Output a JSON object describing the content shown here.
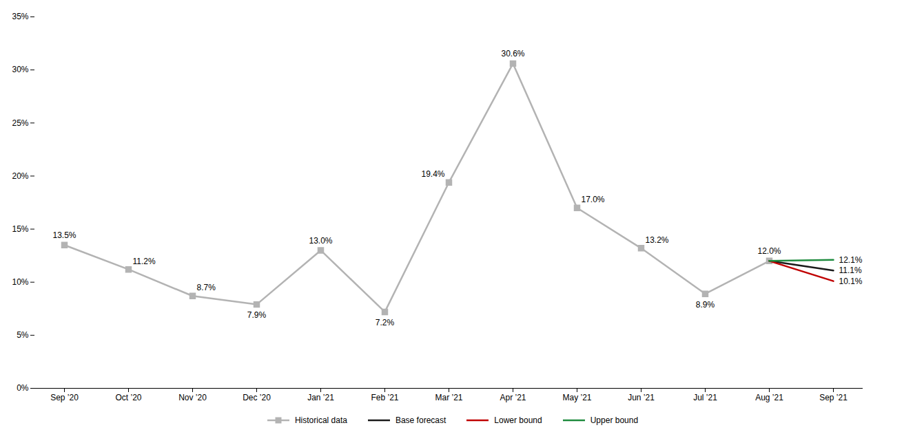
{
  "chart_data": {
    "type": "line",
    "categories": [
      "Sep ’20",
      "Oct ’20",
      "Nov ’20",
      "Dec ’20",
      "Jan ’21",
      "Feb ’21",
      "Mar ’21",
      "Apr ’21",
      "May ’21",
      "Jun ’21",
      "Jul ’21",
      "Aug ’21",
      "Sep ’21"
    ],
    "series": [
      {
        "name": "Historical data",
        "color": "#b3b3b3",
        "marker": "square",
        "values": [
          13.5,
          11.2,
          8.7,
          7.9,
          13.0,
          7.2,
          19.4,
          30.6,
          17.0,
          13.2,
          8.9,
          12.0,
          null
        ],
        "value_labels": [
          "13.5%",
          "11.2%",
          "8.7%",
          "7.9%",
          "13.0%",
          "7.2%",
          "19.4%",
          "30.6%",
          "17.0%",
          "13.2%",
          "8.9%",
          "12.0%",
          null
        ]
      },
      {
        "name": "Base forecast",
        "color": "#1a1a1a",
        "values": [
          null,
          null,
          null,
          null,
          null,
          null,
          null,
          null,
          null,
          null,
          null,
          12.0,
          11.1
        ],
        "value_labels": [
          null,
          null,
          null,
          null,
          null,
          null,
          null,
          null,
          null,
          null,
          null,
          null,
          "11.1%"
        ]
      },
      {
        "name": "Lower bound",
        "color": "#c00000",
        "values": [
          null,
          null,
          null,
          null,
          null,
          null,
          null,
          null,
          null,
          null,
          null,
          12.0,
          10.1
        ],
        "value_labels": [
          null,
          null,
          null,
          null,
          null,
          null,
          null,
          null,
          null,
          null,
          null,
          null,
          "10.1%"
        ]
      },
      {
        "name": "Upper bound",
        "color": "#1e8b3e",
        "values": [
          null,
          null,
          null,
          null,
          null,
          null,
          null,
          null,
          null,
          null,
          null,
          12.0,
          12.1
        ],
        "value_labels": [
          null,
          null,
          null,
          null,
          null,
          null,
          null,
          null,
          null,
          null,
          null,
          null,
          "12.1%"
        ]
      }
    ],
    "ylim": [
      0,
      35
    ],
    "yticks": [
      {
        "value": 0,
        "label": "0%"
      },
      {
        "value": 5,
        "label": "5%"
      },
      {
        "value": 10,
        "label": "10%"
      },
      {
        "value": 15,
        "label": "15%"
      },
      {
        "value": 20,
        "label": "20%"
      },
      {
        "value": 25,
        "label": "25%"
      },
      {
        "value": 30,
        "label": "30%"
      },
      {
        "value": 35,
        "label": "35%"
      }
    ],
    "grid": false,
    "legend": "bottom",
    "data_labels": true
  }
}
